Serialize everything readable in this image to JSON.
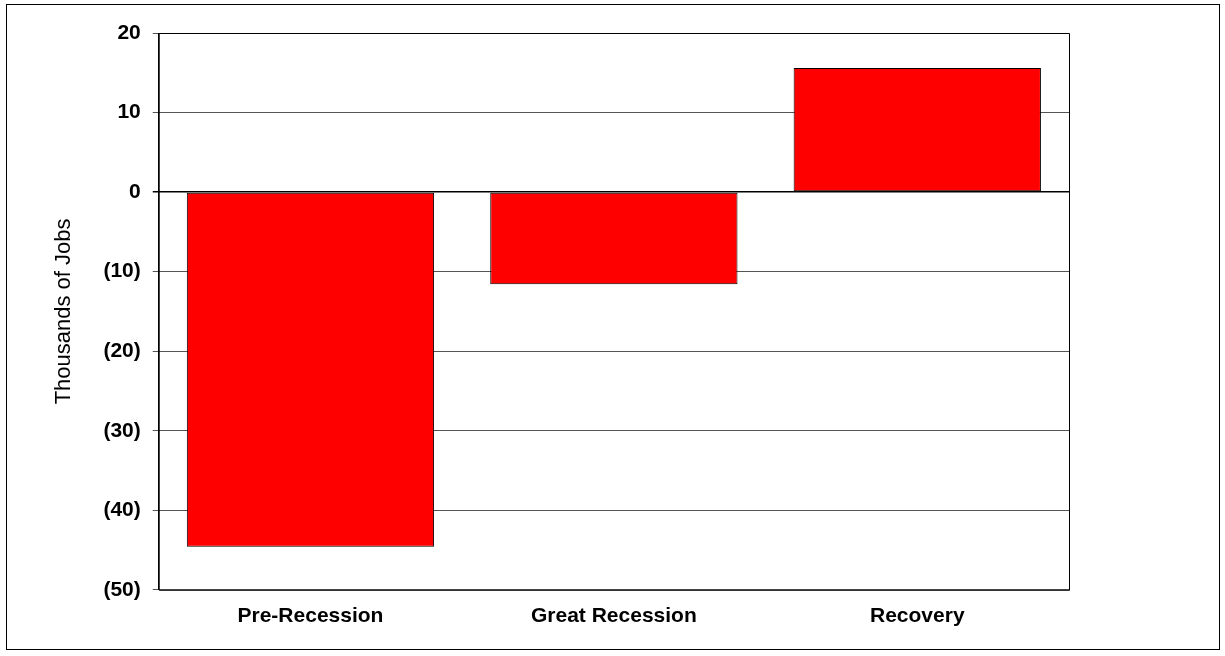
{
  "chart_data": {
    "type": "bar",
    "ylabel": "Thousands of Jobs",
    "categories": [
      "Pre-Recession",
      "Great Recession",
      "Recovery"
    ],
    "values": [
      -44.6,
      -11.6,
      15.6
    ],
    "color": "#ff0000",
    "ylim": [
      -50,
      20
    ],
    "yticks": [
      {
        "value": -50,
        "label": "(50)"
      },
      {
        "value": -40,
        "label": "(40)"
      },
      {
        "value": -30,
        "label": "(30)"
      },
      {
        "value": -20,
        "label": "(20)"
      },
      {
        "value": -10,
        "label": "(10)"
      },
      0,
      10,
      20
    ],
    "grid": "y",
    "legend": false
  }
}
